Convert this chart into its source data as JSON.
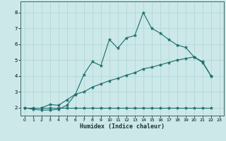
{
  "xlabel": "Humidex (Indice chaleur)",
  "bg_color": "#cce8e8",
  "line_color": "#1a6b6b",
  "grid_color": "#afd4d4",
  "xlim": [
    -0.5,
    23.5
  ],
  "ylim": [
    1.5,
    8.7
  ],
  "xticks": [
    0,
    1,
    2,
    3,
    4,
    5,
    6,
    7,
    8,
    9,
    10,
    11,
    12,
    13,
    14,
    15,
    16,
    17,
    18,
    19,
    20,
    21,
    22,
    23
  ],
  "yticks": [
    2,
    3,
    4,
    5,
    6,
    7,
    8
  ],
  "line1_x": [
    0,
    1,
    2,
    3,
    4,
    5,
    6,
    7,
    8,
    9,
    10,
    11,
    12,
    13,
    14,
    15,
    16,
    17,
    18,
    19,
    20,
    21,
    22
  ],
  "line1_y": [
    2.0,
    1.9,
    1.85,
    1.85,
    1.9,
    2.15,
    2.85,
    4.1,
    4.9,
    4.65,
    6.3,
    5.75,
    6.4,
    6.55,
    8.0,
    7.0,
    6.7,
    6.3,
    5.95,
    5.8,
    5.2,
    4.85,
    4.0
  ],
  "line2_x": [
    2,
    3,
    4,
    5,
    6,
    7,
    8,
    9,
    10,
    11,
    12,
    13,
    14,
    15,
    16,
    17,
    18,
    19,
    20,
    21,
    22
  ],
  "line2_y": [
    2.0,
    2.2,
    2.15,
    2.5,
    2.85,
    3.0,
    3.3,
    3.5,
    3.7,
    3.85,
    4.05,
    4.2,
    4.45,
    4.55,
    4.7,
    4.85,
    5.0,
    5.1,
    5.2,
    4.9,
    4.0
  ],
  "line3_x": [
    0,
    1,
    2,
    3,
    4,
    5,
    6,
    7,
    8,
    9,
    10,
    11,
    12,
    13,
    14,
    15,
    16,
    17,
    18,
    19,
    20,
    21,
    22
  ],
  "line3_y": [
    2.0,
    2.0,
    2.0,
    2.0,
    2.0,
    2.0,
    2.0,
    2.0,
    2.0,
    2.0,
    2.0,
    2.0,
    2.0,
    2.0,
    2.0,
    2.0,
    2.0,
    2.0,
    2.0,
    2.0,
    2.0,
    2.0,
    2.0
  ]
}
